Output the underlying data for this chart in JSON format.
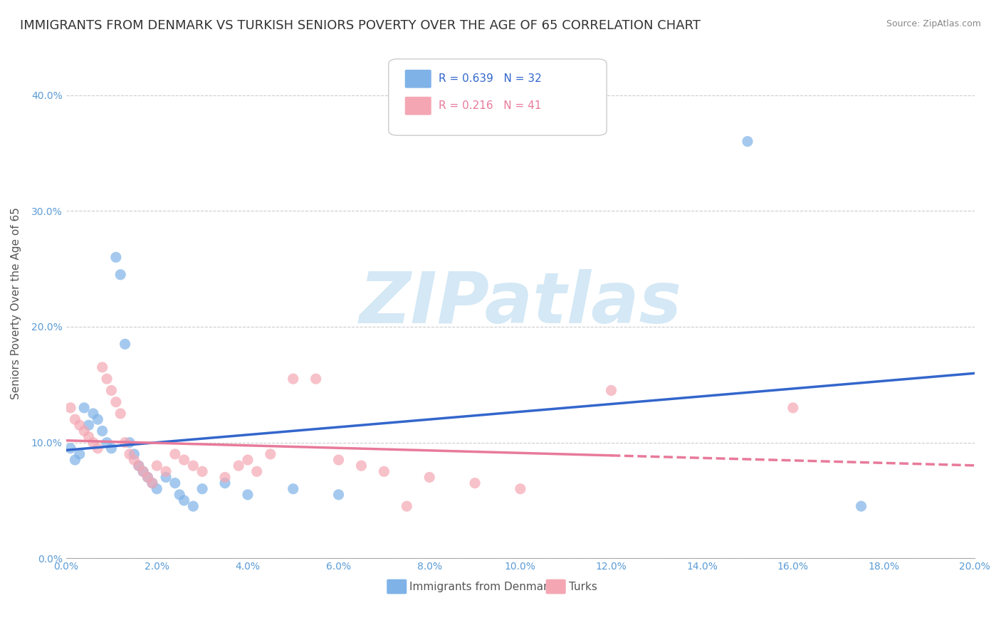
{
  "title": "IMMIGRANTS FROM DENMARK VS TURKISH SENIORS POVERTY OVER THE AGE OF 65 CORRELATION CHART",
  "source": "Source: ZipAtlas.com",
  "ylabel": "Seniors Poverty Over the Age of 65",
  "xlim": [
    0.0,
    0.2
  ],
  "ylim": [
    0.0,
    0.44
  ],
  "xticks": [
    0.0,
    0.02,
    0.04,
    0.06,
    0.08,
    0.1,
    0.12,
    0.14,
    0.16,
    0.18,
    0.2
  ],
  "yticks": [
    0.0,
    0.1,
    0.2,
    0.3,
    0.4
  ],
  "blue_R": 0.639,
  "blue_N": 32,
  "pink_R": 0.216,
  "pink_N": 41,
  "blue_color": "#7fb3e8",
  "pink_color": "#f4a7b3",
  "blue_line_color": "#3366cc",
  "pink_line_color": "#e87a9a",
  "blue_scatter": [
    [
      0.001,
      0.095
    ],
    [
      0.002,
      0.085
    ],
    [
      0.003,
      0.09
    ],
    [
      0.004,
      0.13
    ],
    [
      0.005,
      0.115
    ],
    [
      0.006,
      0.125
    ],
    [
      0.007,
      0.12
    ],
    [
      0.008,
      0.11
    ],
    [
      0.009,
      0.1
    ],
    [
      0.01,
      0.095
    ],
    [
      0.011,
      0.26
    ],
    [
      0.012,
      0.245
    ],
    [
      0.013,
      0.185
    ],
    [
      0.014,
      0.1
    ],
    [
      0.015,
      0.09
    ],
    [
      0.016,
      0.08
    ],
    [
      0.017,
      0.075
    ],
    [
      0.018,
      0.07
    ],
    [
      0.019,
      0.065
    ],
    [
      0.02,
      0.06
    ],
    [
      0.022,
      0.07
    ],
    [
      0.024,
      0.065
    ],
    [
      0.025,
      0.055
    ],
    [
      0.026,
      0.05
    ],
    [
      0.028,
      0.045
    ],
    [
      0.03,
      0.06
    ],
    [
      0.035,
      0.065
    ],
    [
      0.04,
      0.055
    ],
    [
      0.05,
      0.06
    ],
    [
      0.06,
      0.055
    ],
    [
      0.15,
      0.36
    ],
    [
      0.175,
      0.045
    ]
  ],
  "pink_scatter": [
    [
      0.001,
      0.13
    ],
    [
      0.002,
      0.12
    ],
    [
      0.003,
      0.115
    ],
    [
      0.004,
      0.11
    ],
    [
      0.005,
      0.105
    ],
    [
      0.006,
      0.1
    ],
    [
      0.007,
      0.095
    ],
    [
      0.008,
      0.165
    ],
    [
      0.009,
      0.155
    ],
    [
      0.01,
      0.145
    ],
    [
      0.011,
      0.135
    ],
    [
      0.012,
      0.125
    ],
    [
      0.013,
      0.1
    ],
    [
      0.014,
      0.09
    ],
    [
      0.015,
      0.085
    ],
    [
      0.016,
      0.08
    ],
    [
      0.017,
      0.075
    ],
    [
      0.018,
      0.07
    ],
    [
      0.019,
      0.065
    ],
    [
      0.02,
      0.08
    ],
    [
      0.022,
      0.075
    ],
    [
      0.024,
      0.09
    ],
    [
      0.026,
      0.085
    ],
    [
      0.028,
      0.08
    ],
    [
      0.03,
      0.075
    ],
    [
      0.035,
      0.07
    ],
    [
      0.038,
      0.08
    ],
    [
      0.04,
      0.085
    ],
    [
      0.042,
      0.075
    ],
    [
      0.045,
      0.09
    ],
    [
      0.05,
      0.155
    ],
    [
      0.055,
      0.155
    ],
    [
      0.06,
      0.085
    ],
    [
      0.065,
      0.08
    ],
    [
      0.07,
      0.075
    ],
    [
      0.075,
      0.045
    ],
    [
      0.08,
      0.07
    ],
    [
      0.09,
      0.065
    ],
    [
      0.1,
      0.06
    ],
    [
      0.12,
      0.145
    ],
    [
      0.16,
      0.13
    ]
  ],
  "watermark": "ZIPatlas",
  "watermark_color": "#d4e8f5",
  "background_color": "#ffffff",
  "grid_color": "#cccccc",
  "title_fontsize": 13,
  "label_fontsize": 11,
  "tick_fontsize": 10,
  "legend_fontsize": 11
}
